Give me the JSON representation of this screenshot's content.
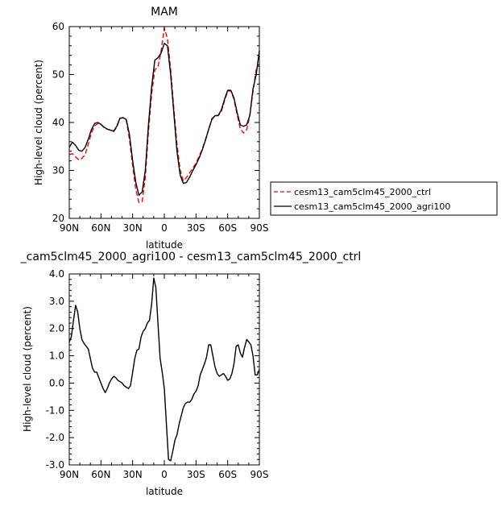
{
  "chart_data": [
    {
      "type": "line",
      "title": "MAM",
      "xlabel": "latitude",
      "ylabel": "High-level cloud (percent)",
      "x_ticks": [
        "90N",
        "60N",
        "30N",
        "0",
        "30S",
        "60S",
        "90S"
      ],
      "x_tick_values": [
        90,
        60,
        30,
        0,
        -30,
        -60,
        -90
      ],
      "y_ticks": [
        "20",
        "30",
        "40",
        "50",
        "60"
      ],
      "xlim": [
        90,
        -90
      ],
      "ylim": [
        20,
        60
      ],
      "legend_position": "right",
      "series": [
        {
          "name": "cesm13_cam5clm45_2000_ctrl",
          "color": "#ff0000",
          "dash": "dashed",
          "x": [
            90,
            87,
            84,
            81,
            78,
            75,
            72,
            69,
            66,
            63,
            60,
            57,
            54,
            51,
            48,
            45,
            42,
            39,
            36,
            33,
            30,
            27,
            24,
            21,
            18,
            15,
            12,
            9,
            6,
            3,
            0,
            -3,
            -6,
            -9,
            -12,
            -15,
            -18,
            -21,
            -24,
            -27,
            -30,
            -33,
            -36,
            -39,
            -42,
            -45,
            -48,
            -51,
            -54,
            -57,
            -60,
            -63,
            -66,
            -69,
            -72,
            -75,
            -78,
            -81,
            -84,
            -87,
            -90
          ],
          "y": [
            33.3,
            33.5,
            32.8,
            32.2,
            32.5,
            33.3,
            35.5,
            37.8,
            39.3,
            39.8,
            39.6,
            38.9,
            38.6,
            38.4,
            38.1,
            39.0,
            40.8,
            41.0,
            40.5,
            36.5,
            31.0,
            26.0,
            23.3,
            23.5,
            28.5,
            38.0,
            46.0,
            51.0,
            51.5,
            55.0,
            59.7,
            57.5,
            51.0,
            43.0,
            35.5,
            30.0,
            27.8,
            28.5,
            29.5,
            30.5,
            31.5,
            33.0,
            34.5,
            36.5,
            38.5,
            40.8,
            41.4,
            41.4,
            42.3,
            44.5,
            46.5,
            46.6,
            44.8,
            41.5,
            38.7,
            37.8,
            38.5,
            41.5,
            46.5,
            51.0,
            52.0
          ]
        },
        {
          "name": "cesm13_cam5clm45_2000_agri100",
          "color": "#000000",
          "dash": "solid",
          "x": [
            90,
            87,
            84,
            81,
            78,
            75,
            72,
            69,
            66,
            63,
            60,
            57,
            54,
            51,
            48,
            45,
            42,
            39,
            36,
            33,
            30,
            27,
            24,
            21,
            18,
            15,
            12,
            9,
            6,
            3,
            0,
            -3,
            -6,
            -9,
            -12,
            -15,
            -18,
            -21,
            -24,
            -27,
            -30,
            -33,
            -36,
            -39,
            -42,
            -45,
            -48,
            -51,
            -54,
            -57,
            -60,
            -63,
            -66,
            -69,
            -72,
            -75,
            -78,
            -81,
            -84,
            -87,
            -90
          ],
          "y": [
            34.8,
            35.9,
            35.2,
            34.2,
            34.0,
            34.8,
            36.5,
            38.5,
            39.8,
            40.0,
            39.6,
            39.0,
            38.6,
            38.4,
            38.2,
            39.2,
            40.9,
            41.0,
            40.6,
            37.5,
            32.0,
            27.5,
            24.8,
            25.5,
            30.0,
            39.5,
            47.5,
            53.0,
            53.5,
            54.5,
            56.5,
            56.0,
            50.0,
            42.0,
            34.0,
            29.0,
            27.3,
            27.5,
            28.6,
            30.0,
            31.2,
            32.6,
            34.3,
            36.3,
            38.6,
            40.6,
            41.4,
            41.5,
            42.6,
            44.8,
            46.7,
            46.7,
            45.1,
            42.0,
            39.5,
            39.2,
            39.5,
            41.5,
            47.0,
            50.0,
            55.0
          ]
        }
      ]
    },
    {
      "type": "line",
      "title": "_cam5clm45_2000_agri100 - cesm13_cam5clm45_2000_ctrl",
      "xlabel": "latitude",
      "ylabel": "High-level cloud (percent)",
      "x_ticks": [
        "90N",
        "60N",
        "30N",
        "0",
        "30S",
        "60S",
        "90S"
      ],
      "x_tick_values": [
        90,
        60,
        30,
        0,
        -30,
        -60,
        -90
      ],
      "y_ticks": [
        "4.0",
        "3.0",
        "2.0",
        "1.0",
        "0.0",
        "-1.0",
        "-2.0",
        "-3.0"
      ],
      "xlim": [
        90,
        -90
      ],
      "ylim": [
        -3,
        4
      ],
      "series": [
        {
          "color": "#000000",
          "dash": "solid",
          "x": [
            90,
            88,
            86,
            84,
            82,
            80,
            78,
            76,
            74,
            72,
            70,
            68,
            66,
            64,
            62,
            60,
            58,
            56,
            54,
            52,
            50,
            48,
            46,
            44,
            42,
            40,
            38,
            36,
            34,
            32,
            30,
            28,
            26,
            24,
            22,
            20,
            18,
            16,
            14,
            12,
            10,
            8,
            6,
            4,
            2,
            0,
            -2,
            -4,
            -6,
            -8,
            -10,
            -12,
            -14,
            -16,
            -18,
            -20,
            -22,
            -24,
            -26,
            -28,
            -30,
            -32,
            -34,
            -36,
            -38,
            -40,
            -42,
            -44,
            -46,
            -48,
            -50,
            -52,
            -54,
            -56,
            -58,
            -60,
            -62,
            -64,
            -66,
            -68,
            -70,
            -72,
            -74,
            -76,
            -78,
            -80,
            -82,
            -84,
            -86,
            -88,
            -90
          ],
          "y": [
            1.5,
            1.7,
            2.3,
            2.85,
            2.6,
            2.0,
            1.6,
            1.45,
            1.35,
            1.25,
            0.9,
            0.55,
            0.4,
            0.4,
            0.2,
            0.0,
            -0.2,
            -0.35,
            -0.2,
            0.0,
            0.15,
            0.25,
            0.2,
            0.1,
            0.05,
            0.0,
            -0.1,
            -0.15,
            -0.2,
            -0.1,
            0.4,
            0.9,
            1.2,
            1.25,
            1.7,
            1.9,
            2.0,
            2.2,
            2.3,
            2.9,
            3.85,
            3.5,
            2.2,
            0.9,
            0.4,
            -0.2,
            -1.5,
            -2.8,
            -2.85,
            -2.5,
            -2.1,
            -1.9,
            -1.5,
            -1.2,
            -0.9,
            -0.75,
            -0.7,
            -0.7,
            -0.6,
            -0.4,
            -0.3,
            -0.1,
            0.3,
            0.5,
            0.7,
            0.95,
            1.4,
            1.4,
            1.0,
            0.6,
            0.35,
            0.25,
            0.3,
            0.35,
            0.25,
            0.1,
            0.15,
            0.35,
            0.7,
            1.35,
            1.4,
            1.1,
            0.95,
            1.3,
            1.6,
            1.5,
            1.4,
            1.0,
            0.3,
            0.3,
            0.5
          ]
        }
      ]
    }
  ]
}
